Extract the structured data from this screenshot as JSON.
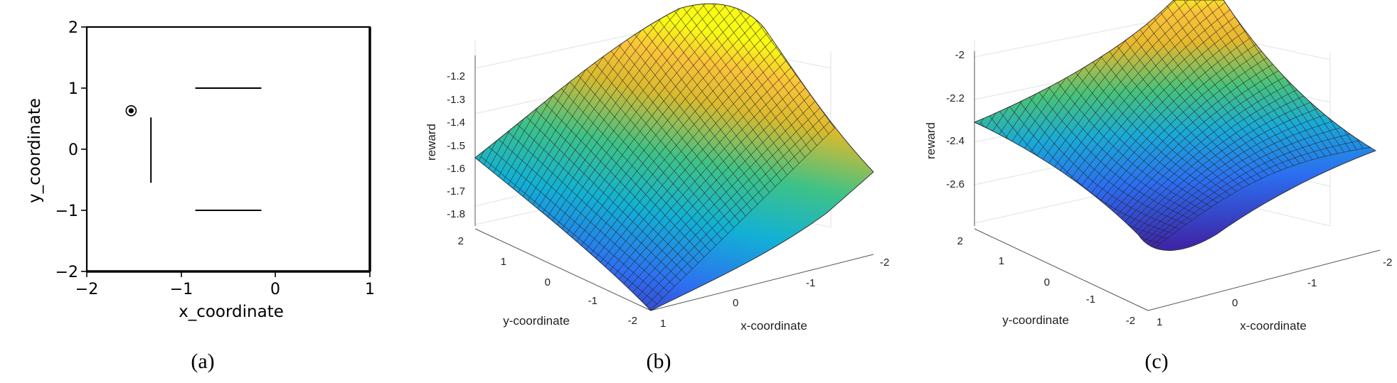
{
  "colors": {
    "axis": "#000000",
    "grid": "#e2e2e2",
    "mesh": "#222222",
    "colormap": "parula"
  },
  "chart_data": [
    {
      "type": "line",
      "panel": "(a)",
      "xlabel": "x_coordinate",
      "ylabel": "y_coordinate",
      "xlim": [
        -2,
        1
      ],
      "ylim": [
        -2,
        2
      ],
      "xticks": [
        "−2",
        "−1",
        "0",
        "1"
      ],
      "yticks": [
        "2",
        "1",
        "0",
        "−1",
        "−2"
      ],
      "walls": [
        {
          "x": [
            -0.85,
            -0.15
          ],
          "y": [
            1.0,
            1.0
          ]
        },
        {
          "x": [
            -1.32,
            -1.32
          ],
          "y": [
            0.52,
            -0.55
          ]
        },
        {
          "x": [
            -0.85,
            -0.15
          ],
          "y": [
            -1.0,
            -1.0
          ]
        }
      ],
      "marker": {
        "x": -1.53,
        "y": 0.63,
        "symbol": "circle-dot"
      },
      "grid": false
    },
    {
      "type": "surface",
      "panel": "(b)",
      "xlabel": "x-coordinate",
      "ylabel": "y-coordinate",
      "zlabel": "reward",
      "xlim": [
        -2,
        1
      ],
      "ylim": [
        -2,
        2
      ],
      "zlim": [
        -1.85,
        -1.12
      ],
      "xticks": [
        "-2",
        "-1",
        "0",
        "1"
      ],
      "yticks": [
        "2",
        "1",
        "0",
        "-1",
        "-2"
      ],
      "zticks": [
        "-1.2",
        "-1.3",
        "-1.4",
        "-1.5",
        "-1.6",
        "-1.7",
        "-1.8"
      ],
      "surface_max": -1.1,
      "surface_min": -1.9,
      "grid": true
    },
    {
      "type": "surface",
      "panel": "(c)",
      "xlabel": "x-coordinate",
      "ylabel": "y-coordinate",
      "zlabel": "reward",
      "xlim": [
        -2,
        1
      ],
      "ylim": [
        -2,
        2
      ],
      "zlim": [
        -2.75,
        -1.95
      ],
      "xticks": [
        "-2",
        "-1",
        "0",
        "1"
      ],
      "yticks": [
        "2",
        "1",
        "0",
        "-1",
        "-2"
      ],
      "zticks": [
        "-2",
        "-2.2",
        "-2.4",
        "-2.6"
      ],
      "surface_max": -1.75,
      "surface_min": -2.85,
      "grid": true
    }
  ]
}
